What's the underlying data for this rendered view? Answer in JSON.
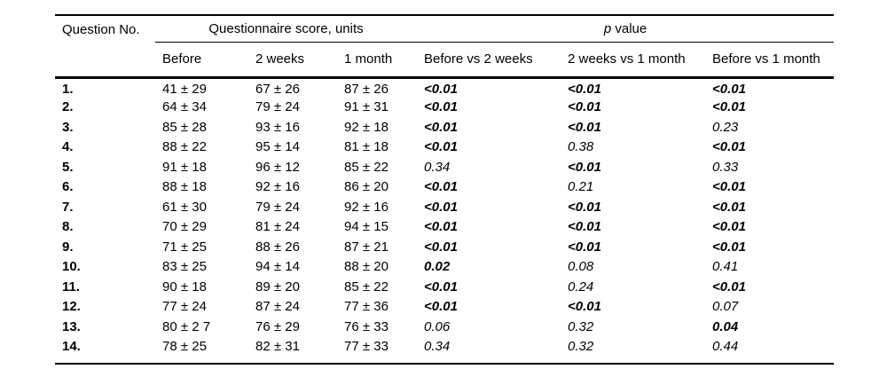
{
  "table": {
    "question_header": "Question No.",
    "group_headers": {
      "score": "Questionnaire score, units",
      "p_italic": "p",
      "p_rest": " value"
    },
    "sub_headers": [
      "Before",
      "2 weeks",
      "1 month",
      "Before vs 2 weeks",
      "2 weeks vs 1 month",
      "Before vs 1 month"
    ],
    "rows": [
      {
        "no": "1.",
        "scores": [
          "41 ± 29",
          "67 ± 26",
          "87 ± 26"
        ],
        "pvalues": [
          {
            "value": "<0.01",
            "significant": true
          },
          {
            "value": "<0.01",
            "significant": true
          },
          {
            "value": "<0.01",
            "significant": true
          }
        ]
      },
      {
        "no": "2.",
        "scores": [
          "64 ± 34",
          "79 ± 24",
          "91 ± 31"
        ],
        "pvalues": [
          {
            "value": "<0.01",
            "significant": true
          },
          {
            "value": "<0.01",
            "significant": true
          },
          {
            "value": "<0.01",
            "significant": true
          }
        ]
      },
      {
        "no": "3.",
        "scores": [
          "85 ± 28",
          "93 ± 16",
          "92 ± 18"
        ],
        "pvalues": [
          {
            "value": "<0.01",
            "significant": true
          },
          {
            "value": "<0.01",
            "significant": true
          },
          {
            "value": "0.23",
            "significant": false
          }
        ]
      },
      {
        "no": "4.",
        "scores": [
          "88 ± 22",
          "95 ± 14",
          "81 ± 18"
        ],
        "pvalues": [
          {
            "value": "<0.01",
            "significant": true
          },
          {
            "value": "0.38",
            "significant": false
          },
          {
            "value": "<0.01",
            "significant": true
          }
        ]
      },
      {
        "no": "5.",
        "scores": [
          "91 ± 18",
          "96 ± 12",
          "85 ± 22"
        ],
        "pvalues": [
          {
            "value": "0.34",
            "significant": false
          },
          {
            "value": "<0.01",
            "significant": true
          },
          {
            "value": "0.33",
            "significant": false
          }
        ]
      },
      {
        "no": "6.",
        "scores": [
          "88 ± 18",
          "92 ± 16",
          "86 ± 20"
        ],
        "pvalues": [
          {
            "value": "<0.01",
            "significant": true
          },
          {
            "value": "0.21",
            "significant": false
          },
          {
            "value": "<0.01",
            "significant": true
          }
        ]
      },
      {
        "no": "7.",
        "scores": [
          "61 ± 30",
          "79 ± 24",
          "92 ± 16"
        ],
        "pvalues": [
          {
            "value": "<0.01",
            "significant": true
          },
          {
            "value": "<0.01",
            "significant": true
          },
          {
            "value": "<0.01",
            "significant": true
          }
        ]
      },
      {
        "no": "8.",
        "scores": [
          "70 ± 29",
          "81 ± 24",
          "94 ± 15"
        ],
        "pvalues": [
          {
            "value": "<0.01",
            "significant": true
          },
          {
            "value": "<0.01",
            "significant": true
          },
          {
            "value": "<0.01",
            "significant": true
          }
        ]
      },
      {
        "no": "9.",
        "scores": [
          "71 ± 25",
          "88 ± 26",
          "87 ± 21"
        ],
        "pvalues": [
          {
            "value": "<0.01",
            "significant": true
          },
          {
            "value": "<0.01",
            "significant": true
          },
          {
            "value": "<0.01",
            "significant": true
          }
        ]
      },
      {
        "no": "10.",
        "scores": [
          "83 ± 25",
          "94 ± 14",
          "88 ± 20"
        ],
        "pvalues": [
          {
            "value": "0.02",
            "significant": true
          },
          {
            "value": "0.08",
            "significant": false
          },
          {
            "value": "0.41",
            "significant": false
          }
        ]
      },
      {
        "no": "11.",
        "scores": [
          "90 ± 18",
          "89 ± 20",
          "85 ± 22"
        ],
        "pvalues": [
          {
            "value": "<0.01",
            "significant": true
          },
          {
            "value": "0.24",
            "significant": false
          },
          {
            "value": "<0.01",
            "significant": true
          }
        ]
      },
      {
        "no": "12.",
        "scores": [
          "77 ± 24",
          "87 ± 24",
          "77 ± 36"
        ],
        "pvalues": [
          {
            "value": "<0.01",
            "significant": true
          },
          {
            "value": "<0.01",
            "significant": true
          },
          {
            "value": "0.07",
            "significant": false
          }
        ]
      },
      {
        "no": "13.",
        "scores": [
          "80 ± 2 7",
          "76 ± 29",
          "76 ± 33"
        ],
        "pvalues": [
          {
            "value": "0.06",
            "significant": false
          },
          {
            "value": "0.32",
            "significant": false
          },
          {
            "value": "0.04",
            "significant": true
          }
        ]
      },
      {
        "no": "14.",
        "scores": [
          "78 ± 25",
          "82 ± 31",
          "77 ± 33"
        ],
        "pvalues": [
          {
            "value": "0.34",
            "significant": false
          },
          {
            "value": "0.32",
            "significant": false
          },
          {
            "value": "0.44",
            "significant": false
          }
        ]
      }
    ]
  },
  "colors": {
    "text": "#000000",
    "background": "#ffffff",
    "rule": "#000000"
  }
}
